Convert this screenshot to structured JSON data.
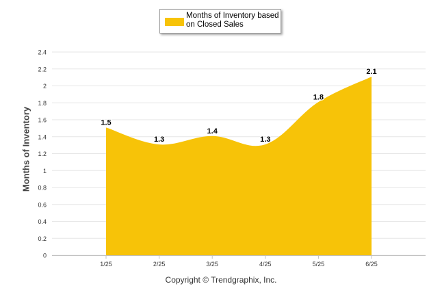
{
  "legend": {
    "label": "Months of Inventory based on Closed Sales"
  },
  "credit": "Copyright © Trendgraphix, Inc.",
  "chart_data": {
    "type": "area",
    "title": "",
    "xlabel": "",
    "ylabel": "Months of Inventory",
    "categories": [
      "1/25",
      "2/25",
      "3/25",
      "4/25",
      "5/25",
      "6/25"
    ],
    "series": [
      {
        "name": "Months of Inventory based on Closed Sales",
        "values": [
          1.5,
          1.3,
          1.4,
          1.3,
          1.8,
          2.1
        ],
        "color": "#f7c308"
      }
    ],
    "data_labels": [
      "1.5",
      "1.3",
      "1.4",
      "1.3",
      "1.8",
      "2.1"
    ],
    "yticks": [
      "0",
      "0.2",
      "0.4",
      "0.6",
      "0.8",
      "1",
      "1.2",
      "1.4",
      "1.6",
      "1.8",
      "2",
      "2.2",
      "2.4"
    ],
    "ylim": [
      0,
      2.4
    ],
    "grid": true,
    "legend_position": "top-center"
  }
}
